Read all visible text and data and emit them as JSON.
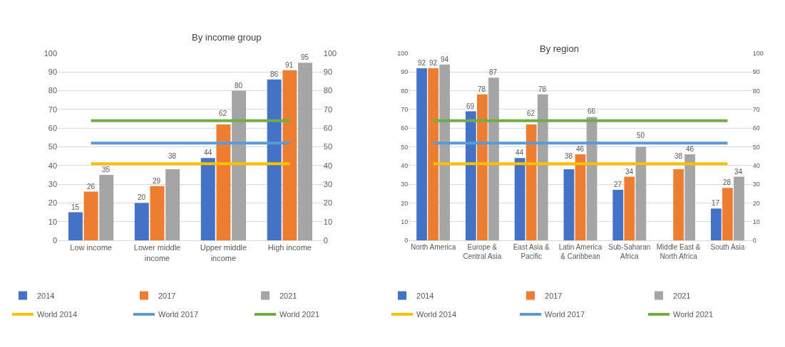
{
  "chart_data": [
    {
      "type": "bar",
      "title": "By income group",
      "categories": [
        "Low income",
        "Lower middle income",
        "Upper middle income",
        "High income"
      ],
      "ylim": [
        0,
        100
      ],
      "yticks": [
        0,
        10,
        20,
        30,
        40,
        50,
        60,
        70,
        80,
        90,
        100
      ],
      "y2lim": [
        0,
        100
      ],
      "y2ticks": [
        0,
        10,
        20,
        30,
        40,
        50,
        60,
        70,
        80,
        90,
        100
      ],
      "grid": "y",
      "legend": "bottom",
      "series": [
        {
          "name": "2014",
          "color": "#4472c4",
          "values": [
            15,
            20,
            44,
            86
          ],
          "value_labels": [
            "15",
            "20",
            "44",
            "86"
          ]
        },
        {
          "name": "2017",
          "color": "#ed7d31",
          "values": [
            26,
            29,
            62,
            91
          ],
          "value_labels": [
            "26",
            "29",
            "62",
            "91"
          ]
        },
        {
          "name": "2021",
          "color": "#a5a5a5",
          "values": [
            35,
            38,
            80,
            95
          ],
          "value_labels": [
            "35",
            "38",
            "80",
            "95"
          ]
        },
        {
          "name": "World 2014",
          "type": "line",
          "axis": "y2",
          "color": "#ffc000",
          "values": [
            41,
            41,
            41,
            41
          ]
        },
        {
          "name": "World 2017",
          "type": "line",
          "axis": "y2",
          "color": "#5b9bd5",
          "values": [
            52,
            52,
            52,
            52
          ]
        },
        {
          "name": "World 2021",
          "type": "line",
          "axis": "y2",
          "color": "#70ad47",
          "values": [
            64,
            64,
            64,
            64
          ]
        }
      ]
    },
    {
      "type": "bar",
      "title": "By region",
      "categories": [
        "North America",
        "Europe & Central Asia",
        "East Asia & Pacific",
        "Latin America & Caribbean",
        "Sub-Saharan Africa",
        "Middle East & North Africa",
        "South Asia"
      ],
      "ylim": [
        0,
        100
      ],
      "yticks": [
        0,
        10,
        20,
        30,
        40,
        50,
        60,
        70,
        80,
        90,
        100
      ],
      "y2lim": [
        0,
        100
      ],
      "y2ticks": [
        0,
        10,
        20,
        30,
        40,
        50,
        60,
        70,
        80,
        90,
        100
      ],
      "grid": "y",
      "legend": "bottom",
      "series": [
        {
          "name": "2014",
          "color": "#4472c4",
          "values": [
            92,
            69,
            44,
            38,
            27,
            null,
            17
          ],
          "value_labels": [
            "92",
            "69",
            "44",
            "38",
            "27",
            null,
            "17"
          ]
        },
        {
          "name": "2017",
          "color": "#ed7d31",
          "values": [
            92,
            78,
            62,
            46,
            34,
            38,
            28
          ],
          "value_labels": [
            "92",
            "78",
            "62",
            "46",
            "34",
            "38",
            "28"
          ]
        },
        {
          "name": "2021",
          "color": "#a5a5a5",
          "values": [
            94,
            87,
            78,
            66,
            50,
            46,
            34
          ],
          "value_labels": [
            "94",
            "87",
            "78",
            "66",
            "50",
            "46",
            "34"
          ]
        },
        {
          "name": "World 2014",
          "type": "line",
          "axis": "y2",
          "color": "#ffc000",
          "values": [
            41,
            41,
            41,
            41,
            41,
            41,
            41
          ]
        },
        {
          "name": "World 2017",
          "type": "line",
          "axis": "y2",
          "color": "#5b9bd5",
          "values": [
            52,
            52,
            52,
            52,
            52,
            52,
            52
          ]
        },
        {
          "name": "World 2021",
          "type": "line",
          "axis": "y2",
          "color": "#70ad47",
          "values": [
            64,
            64,
            64,
            64,
            64,
            64,
            64
          ]
        }
      ]
    }
  ]
}
